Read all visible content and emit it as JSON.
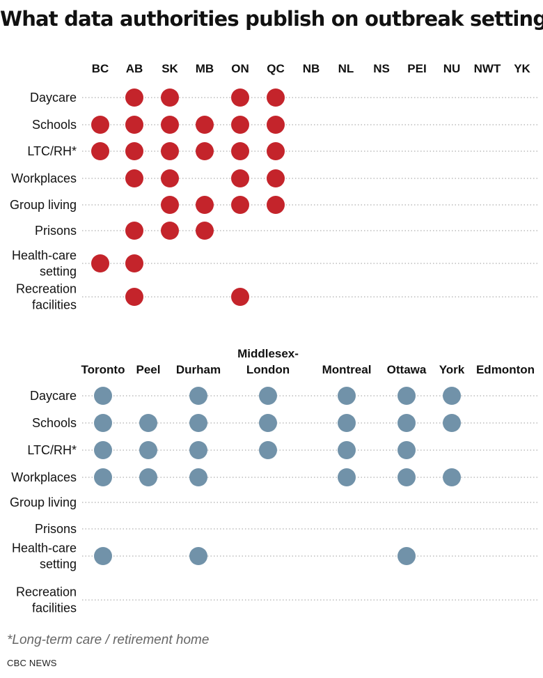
{
  "title": "What data authorities publish on outbreak settings",
  "footnote": "*Long-term care / retirement home",
  "source": "CBC NEWS",
  "colors": {
    "provinces": "#c4242b",
    "cities": "#7192a9"
  },
  "chart_data": [
    {
      "type": "dot-matrix",
      "color": "#c4242b",
      "rows": [
        [
          "Daycare"
        ],
        [
          "Schools"
        ],
        [
          "LTC/RH*"
        ],
        [
          "Workplaces"
        ],
        [
          "Group living"
        ],
        [
          "Prisons"
        ],
        [
          "Health-care",
          "setting"
        ],
        [
          "Recreation",
          "facilities"
        ]
      ],
      "columns": [
        [
          "BC"
        ],
        [
          "AB"
        ],
        [
          "SK"
        ],
        [
          "MB"
        ],
        [
          "ON"
        ],
        [
          "QC"
        ],
        [
          "NB"
        ],
        [
          "NL"
        ],
        [
          "NS"
        ],
        [
          "PEI"
        ],
        [
          "NU"
        ],
        [
          "NWT"
        ],
        [
          "YK"
        ]
      ],
      "published": [
        [
          0,
          1,
          1,
          0,
          1,
          1,
          0,
          0,
          0,
          0,
          0,
          0,
          0
        ],
        [
          1,
          1,
          1,
          1,
          1,
          1,
          0,
          0,
          0,
          0,
          0,
          0,
          0
        ],
        [
          1,
          1,
          1,
          1,
          1,
          1,
          0,
          0,
          0,
          0,
          0,
          0,
          0
        ],
        [
          0,
          1,
          1,
          0,
          1,
          1,
          0,
          0,
          0,
          0,
          0,
          0,
          0
        ],
        [
          0,
          0,
          1,
          1,
          1,
          1,
          0,
          0,
          0,
          0,
          0,
          0,
          0
        ],
        [
          0,
          1,
          1,
          1,
          0,
          0,
          0,
          0,
          0,
          0,
          0,
          0,
          0
        ],
        [
          1,
          1,
          0,
          0,
          0,
          0,
          0,
          0,
          0,
          0,
          0,
          0,
          0
        ],
        [
          0,
          1,
          0,
          0,
          1,
          0,
          0,
          0,
          0,
          0,
          0,
          0,
          0
        ]
      ]
    },
    {
      "type": "dot-matrix",
      "color": "#7192a9",
      "rows": [
        [
          "Daycare"
        ],
        [
          "Schools"
        ],
        [
          "LTC/RH*"
        ],
        [
          "Workplaces"
        ],
        [
          "Group living"
        ],
        [
          "Prisons"
        ],
        [
          "Health-care",
          "setting"
        ],
        [
          "Recreation",
          "facilities"
        ]
      ],
      "columns": [
        [
          "Toronto"
        ],
        [
          "Peel"
        ],
        [
          "Durham"
        ],
        [
          "Middlesex-",
          "London"
        ],
        [
          "Montreal"
        ],
        [
          "Ottawa"
        ],
        [
          "York"
        ],
        [
          "Edmonton"
        ]
      ],
      "published": [
        [
          1,
          0,
          1,
          1,
          1,
          1,
          1,
          0
        ],
        [
          1,
          1,
          1,
          1,
          1,
          1,
          1,
          0
        ],
        [
          1,
          1,
          1,
          1,
          1,
          1,
          0,
          0
        ],
        [
          1,
          1,
          1,
          0,
          1,
          1,
          1,
          0
        ],
        [
          0,
          0,
          0,
          0,
          0,
          0,
          0,
          0
        ],
        [
          0,
          0,
          0,
          0,
          0,
          0,
          0,
          0
        ],
        [
          1,
          0,
          1,
          0,
          0,
          1,
          0,
          0
        ],
        [
          0,
          0,
          0,
          0,
          0,
          0,
          0,
          0
        ]
      ]
    }
  ]
}
